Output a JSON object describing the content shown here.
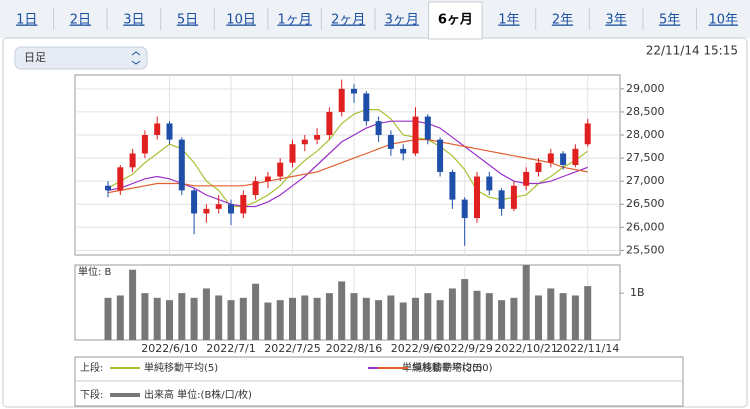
{
  "tabs": [
    "1日",
    "2日",
    "3日",
    "5日",
    "10日",
    "1ヶ月",
    "2ヶ月",
    "3ヶ月",
    "6ヶ月",
    "1年",
    "2年",
    "3年",
    "5年",
    "10年"
  ],
  "selected_tab": 8,
  "dropdown": "日足",
  "timestamp": "22/11/14 15:15",
  "chart_data": {
    "type": "candlestick",
    "categories": [
      null,
      null,
      null,
      null,
      null,
      "2022/6/10",
      null,
      null,
      null,
      null,
      "2022/7/1",
      null,
      null,
      null,
      null,
      "2022/7/25",
      null,
      null,
      null,
      null,
      "2022/8/16",
      null,
      null,
      null,
      null,
      "2022/9/6",
      null,
      null,
      null,
      "2022/9/29",
      null,
      null,
      null,
      null,
      "2022/10/21",
      null,
      null,
      null,
      null,
      "2022/11/14"
    ],
    "open": [
      26900,
      26800,
      27300,
      27600,
      28000,
      28250,
      27900,
      26800,
      26300,
      26400,
      26500,
      26300,
      26700,
      27000,
      27100,
      27400,
      27800,
      27900,
      28000,
      28500,
      29000,
      28900,
      28300,
      28000,
      27700,
      27600,
      28400,
      27900,
      27200,
      26600,
      26200,
      27100,
      26800,
      26400,
      26900,
      27200,
      27400,
      27600,
      27350,
      27800
    ],
    "high": [
      27000,
      27350,
      27700,
      28100,
      28400,
      28300,
      27950,
      26850,
      26500,
      26700,
      26600,
      26800,
      27100,
      27200,
      27500,
      27900,
      28000,
      28150,
      28600,
      29200,
      29100,
      28950,
      28400,
      28100,
      27800,
      28600,
      28450,
      27950,
      27250,
      26650,
      27200,
      27200,
      26850,
      27000,
      27300,
      27500,
      27700,
      27650,
      27800,
      28350
    ],
    "low": [
      26650,
      26700,
      27200,
      27500,
      27900,
      27800,
      26700,
      25850,
      26100,
      26300,
      26050,
      26200,
      26600,
      26850,
      27000,
      27300,
      27650,
      27800,
      27900,
      28400,
      28700,
      28200,
      27850,
      27550,
      27450,
      27550,
      27800,
      27100,
      26400,
      25600,
      26100,
      26700,
      26250,
      26350,
      26800,
      27100,
      27300,
      27250,
      27300,
      27750
    ],
    "close": [
      26800,
      27300,
      27600,
      28000,
      28250,
      27900,
      26800,
      26300,
      26400,
      26500,
      26300,
      26700,
      27000,
      27100,
      27400,
      27800,
      27900,
      28000,
      28500,
      29000,
      28900,
      28300,
      28000,
      27700,
      27600,
      28400,
      27900,
      27200,
      26600,
      26200,
      27100,
      26800,
      26400,
      26900,
      27200,
      27400,
      27600,
      27350,
      27700,
      28250
    ],
    "up_color": "#e02020",
    "down_color": "#1f4fa8",
    "ylim": [
      25400,
      29300
    ],
    "yticks": [
      {
        "value": 25500,
        "label": "25,500"
      },
      {
        "value": 26000,
        "label": "26,000"
      },
      {
        "value": 26500,
        "label": "26,500"
      },
      {
        "value": 27000,
        "label": "27,000"
      },
      {
        "value": 27500,
        "label": "27,500"
      },
      {
        "value": 28000,
        "label": "28,000"
      },
      {
        "value": 28500,
        "label": "28,500"
      },
      {
        "value": 29000,
        "label": "29,000"
      }
    ],
    "grid": true,
    "series": [
      {
        "name": "単純移動平均(5)",
        "color": "#a8c030",
        "values": [
          26850,
          27000,
          27150,
          27400,
          27600,
          27800,
          27700,
          27400,
          27000,
          26800,
          26450,
          26450,
          26550,
          26700,
          26900,
          27200,
          27450,
          27650,
          27900,
          28250,
          28450,
          28550,
          28550,
          28350,
          28000,
          27950,
          27900,
          27750,
          27550,
          27250,
          26800,
          26650,
          26600,
          26650,
          26700,
          26950,
          27100,
          27300,
          27450,
          27650
        ]
      },
      {
        "name": "単純移動平均(25)",
        "color": "#9b30c8",
        "values": [
          26800,
          26850,
          26950,
          27050,
          27100,
          27050,
          26950,
          26850,
          26700,
          26600,
          26500,
          26450,
          26450,
          26550,
          26700,
          26900,
          27100,
          27350,
          27600,
          27850,
          28000,
          28150,
          28250,
          28300,
          28300,
          28300,
          28250,
          28150,
          27950,
          27750,
          27550,
          27350,
          27150,
          27000,
          26950,
          26950,
          27000,
          27100,
          27200,
          27300
        ]
      },
      {
        "name": "単純移動平均(50)",
        "color": "#e06030",
        "values": [
          26750,
          26800,
          26850,
          26900,
          26950,
          26950,
          26950,
          26900,
          26900,
          26900,
          26900,
          26900,
          26950,
          27000,
          27050,
          27100,
          27150,
          27200,
          27300,
          27400,
          27500,
          27600,
          27700,
          27800,
          27850,
          27900,
          27900,
          27850,
          27800,
          27750,
          27700,
          27650,
          27600,
          27550,
          27500,
          27450,
          27400,
          27300,
          27250,
          27200
        ]
      }
    ],
    "volume": {
      "unit_label": "単位: B",
      "name": "出来高 単位:(B株/口/枚)",
      "color": "#777777",
      "values": [
        0.9,
        0.95,
        1.5,
        1.0,
        0.9,
        0.85,
        1.0,
        0.9,
        1.1,
        0.95,
        0.85,
        0.9,
        1.2,
        0.8,
        0.85,
        0.9,
        0.95,
        0.9,
        1.0,
        1.25,
        1.0,
        0.9,
        0.85,
        0.95,
        0.8,
        0.9,
        1.0,
        0.85,
        1.1,
        1.3,
        1.05,
        1.0,
        0.85,
        0.9,
        1.6,
        0.95,
        1.1,
        1.0,
        0.95,
        1.15
      ],
      "ylim": [
        0,
        1.6
      ],
      "yticks": [
        {
          "value": 1,
          "label": "1B"
        }
      ]
    },
    "legend": {
      "upper": "上段:",
      "lower": "下段:"
    }
  }
}
